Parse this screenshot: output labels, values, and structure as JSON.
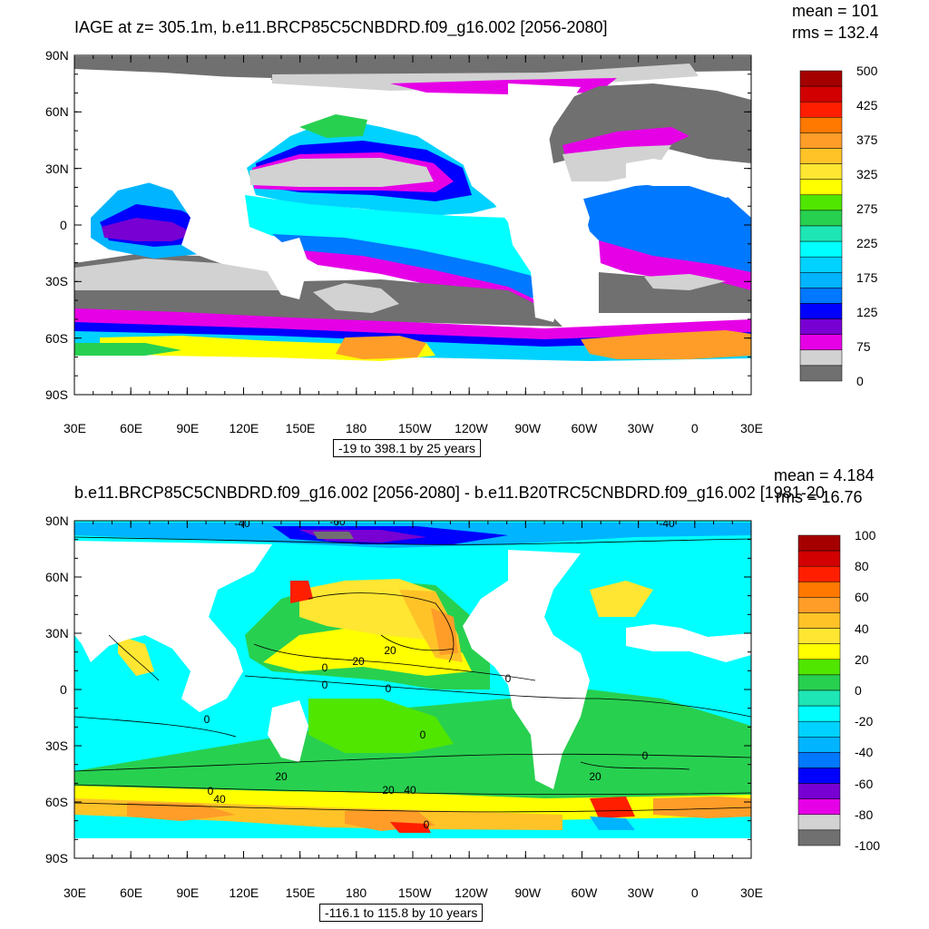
{
  "top": {
    "title": "IAGE at z= 305.1m, b.e11.BRCP85C5CNBDRD.f09_g16.002 [2056-2080]",
    "mean": "mean = 101",
    "rms": "rms = 132.4",
    "range": "-19 to 398.1 by 25 years",
    "colorbar": {
      "labels": [
        "500",
        "425",
        "375",
        "325",
        "275",
        "225",
        "175",
        "125",
        "75",
        "0"
      ],
      "colors": [
        "#a50000",
        "#d20000",
        "#ff1e00",
        "#ff7800",
        "#ff9d28",
        "#ffc328",
        "#ffe632",
        "#ffff00",
        "#50e600",
        "#28d050",
        "#1ee6b4",
        "#00ffff",
        "#00d2ff",
        "#00b4ff",
        "#0078ff",
        "#0000ff",
        "#7800d2",
        "#e600e6",
        "#d2d2d2",
        "#707070"
      ]
    }
  },
  "bottom": {
    "title": "b.e11.BRCP85C5CNBDRD.f09_g16.002 [2056-2080] - b.e11.B20TRC5CNBDRD.f09_g16.002 [1981-20",
    "mean": "mean = 4.184",
    "rms": "rms = 16.76",
    "range": "-116.1 to 115.8 by 10 years",
    "colorbar": {
      "labels": [
        "100",
        "80",
        "60",
        "40",
        "20",
        "0",
        "-20",
        "-40",
        "-60",
        "-80",
        "-100"
      ],
      "colors": [
        "#a50000",
        "#d20000",
        "#ff1e00",
        "#ff7800",
        "#ff9d28",
        "#ffc328",
        "#ffe632",
        "#ffff00",
        "#50e600",
        "#28d050",
        "#1ee6b4",
        "#00ffff",
        "#00d2ff",
        "#00b4ff",
        "#0078ff",
        "#0000ff",
        "#7800d2",
        "#e600e6",
        "#d2d2d2",
        "#707070"
      ]
    },
    "contour_labels": [
      "-40",
      "-60",
      "-40",
      "20",
      "0",
      "20",
      "0",
      "0",
      "0",
      "0",
      "0",
      "0",
      "20",
      "0",
      "20",
      "40",
      "20",
      "40",
      "0"
    ]
  },
  "axes": {
    "lat_labels": [
      "90N",
      "60N",
      "30N",
      "0",
      "30S",
      "60S",
      "90S"
    ],
    "lon_labels": [
      "30E",
      "60E",
      "90E",
      "120E",
      "150E",
      "180",
      "150W",
      "120W",
      "90W",
      "60W",
      "30W",
      "0",
      "30E"
    ]
  }
}
